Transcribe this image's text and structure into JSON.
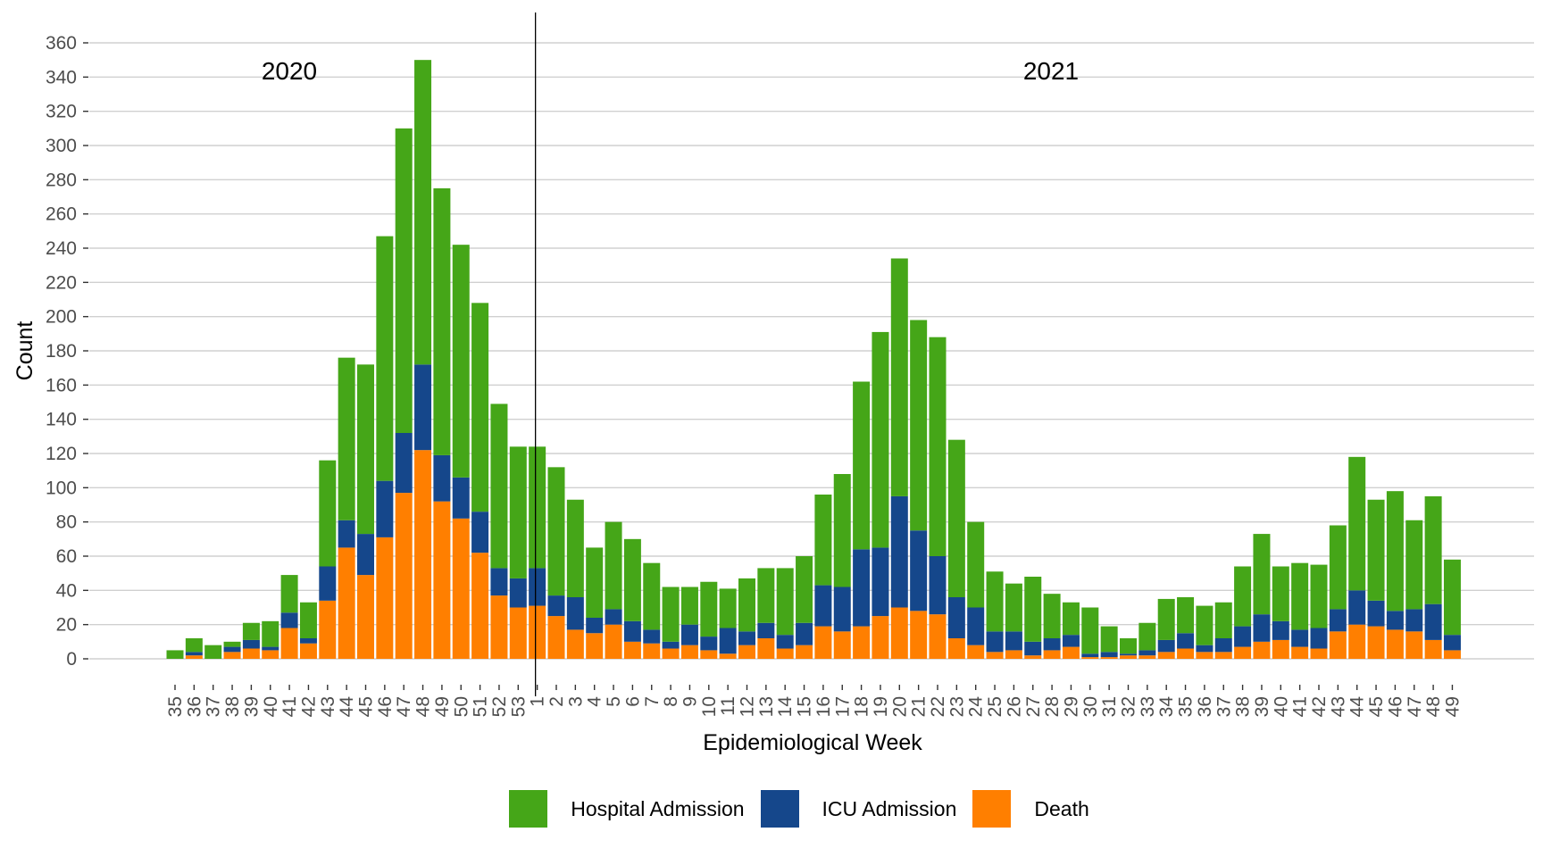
{
  "chart_data": {
    "type": "bar",
    "stacked": true,
    "title": "",
    "xlabel": "Epidemiological Week",
    "ylabel": "Count",
    "ylim": [
      0,
      360
    ],
    "yticks": [
      0,
      20,
      40,
      60,
      80,
      100,
      120,
      140,
      160,
      180,
      200,
      220,
      240,
      260,
      280,
      300,
      320,
      340,
      360
    ],
    "grid": "horizontal",
    "legend_position": "bottom",
    "year_annotations": [
      {
        "label": "2020",
        "weeks_from": "35",
        "weeks_to": "53"
      },
      {
        "label": "2021",
        "weeks_from": "1",
        "weeks_to": "49"
      }
    ],
    "year_divider_before_week_index": 19,
    "categories": [
      "35",
      "36",
      "37",
      "38",
      "39",
      "40",
      "41",
      "42",
      "43",
      "44",
      "45",
      "46",
      "47",
      "48",
      "49",
      "50",
      "51",
      "52",
      "53",
      "1",
      "2",
      "3",
      "4",
      "5",
      "6",
      "7",
      "8",
      "9",
      "10",
      "11",
      "12",
      "13",
      "14",
      "15",
      "16",
      "17",
      "18",
      "19",
      "20",
      "21",
      "22",
      "23",
      "24",
      "25",
      "26",
      "27",
      "28",
      "29",
      "30",
      "31",
      "32",
      "33",
      "34",
      "35",
      "36",
      "37",
      "38",
      "39",
      "40",
      "41",
      "42",
      "43",
      "44",
      "45",
      "46",
      "47",
      "48",
      "49"
    ],
    "series": [
      {
        "name": "Death",
        "color": "#FF7F00",
        "values": [
          0,
          2,
          0,
          4,
          6,
          5,
          18,
          9,
          34,
          65,
          49,
          71,
          97,
          122,
          92,
          82,
          62,
          37,
          30,
          31,
          25,
          17,
          15,
          20,
          10,
          9,
          6,
          8,
          5,
          3,
          8,
          12,
          6,
          8,
          19,
          16,
          19,
          25,
          30,
          28,
          26,
          12,
          8,
          4,
          5,
          2,
          5,
          7,
          1,
          1,
          2,
          2,
          4,
          6,
          4,
          4,
          7,
          10,
          11,
          7,
          6,
          16,
          20,
          19,
          17,
          16,
          11,
          5
        ]
      },
      {
        "name": "ICU Admission",
        "color": "#15478B",
        "values": [
          0,
          2,
          0,
          3,
          5,
          2,
          9,
          3,
          20,
          16,
          24,
          33,
          35,
          50,
          27,
          24,
          24,
          16,
          17,
          22,
          12,
          19,
          9,
          9,
          12,
          8,
          4,
          12,
          8,
          15,
          8,
          9,
          8,
          13,
          24,
          26,
          45,
          40,
          65,
          47,
          34,
          24,
          22,
          12,
          11,
          8,
          7,
          7,
          2,
          3,
          1,
          3,
          7,
          9,
          4,
          8,
          12,
          16,
          11,
          10,
          12,
          13,
          20,
          15,
          11,
          13,
          21,
          9
        ]
      },
      {
        "name": "Hospital Admission",
        "color": "#45A618",
        "values": [
          5,
          8,
          8,
          3,
          10,
          15,
          22,
          21,
          62,
          95,
          99,
          143,
          178,
          178,
          156,
          136,
          122,
          96,
          77,
          71,
          75,
          57,
          41,
          51,
          48,
          39,
          32,
          22,
          32,
          23,
          31,
          32,
          39,
          39,
          53,
          66,
          98,
          126,
          139,
          123,
          128,
          92,
          50,
          35,
          28,
          38,
          26,
          19,
          27,
          15,
          9,
          16,
          24,
          21,
          23,
          21,
          35,
          47,
          32,
          39,
          37,
          49,
          78,
          59,
          70,
          52,
          63,
          44
        ]
      }
    ]
  }
}
